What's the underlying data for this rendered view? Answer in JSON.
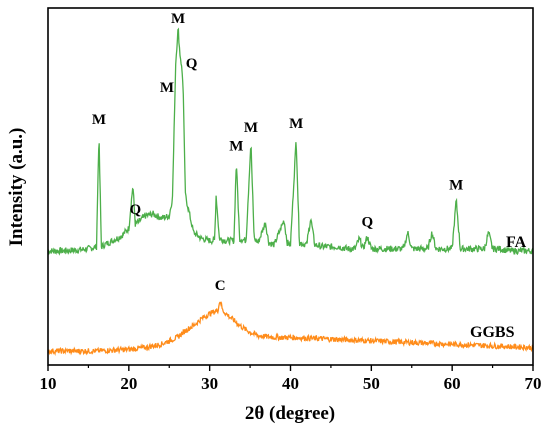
{
  "chart_data": {
    "type": "line",
    "xlabel": "2θ (degree)",
    "ylabel": "Intensity (a.u.)",
    "xlim": [
      10,
      70
    ],
    "xticks": [
      "10",
      "20",
      "30",
      "40",
      "50",
      "60",
      "70"
    ],
    "yticks": [],
    "grid": false,
    "series": [
      {
        "name": "FA",
        "color": "#4daf4a",
        "x": [
          10,
          12,
          14,
          15,
          16,
          16.3,
          16.6,
          17,
          18,
          19,
          20,
          20.5,
          20.8,
          21.2,
          22,
          23,
          24,
          25,
          25.4,
          25.8,
          26.1,
          26.3,
          26.5,
          26.7,
          27,
          28,
          29,
          30,
          30.6,
          30.8,
          31.2,
          32,
          33,
          33.3,
          33.7,
          34.5,
          35.1,
          35.5,
          36,
          36.9,
          37.3,
          38,
          39.2,
          39.6,
          40,
          40.7,
          41.1,
          42,
          42.5,
          43,
          44,
          45,
          46,
          47,
          48,
          48.5,
          49,
          49.5,
          50,
          51,
          52,
          53,
          54,
          54.5,
          55,
          56,
          57,
          57.5,
          58,
          59,
          60,
          60.5,
          61,
          62,
          63,
          64,
          64.5,
          65,
          66,
          67,
          68,
          69,
          70
        ],
        "y": [
          3,
          3,
          3.5,
          4,
          5,
          60,
          5,
          6,
          8,
          10,
          14,
          35,
          16,
          17,
          20,
          21,
          19,
          20,
          29,
          95,
          112,
          100,
          94,
          85,
          30,
          12,
          9,
          8,
          8,
          30,
          9,
          8,
          8,
          47,
          9,
          8,
          56,
          9,
          7,
          17,
          7,
          6,
          18,
          7,
          6,
          58,
          7,
          6,
          19,
          6,
          5,
          5,
          5,
          4,
          4,
          9,
          4,
          10,
          4,
          4,
          4,
          4,
          4,
          12,
          4,
          4,
          4,
          12,
          4,
          4,
          4,
          28,
          4,
          4,
          4,
          4,
          12,
          4,
          4,
          3,
          3,
          3,
          3
        ]
      },
      {
        "name": "GGBS",
        "color": "#ff8c1a",
        "x": [
          10,
          12,
          14,
          16,
          18,
          20,
          22,
          24,
          26,
          27,
          28,
          29,
          30,
          30.5,
          31,
          31.3,
          31.6,
          32,
          33,
          34,
          35,
          36,
          38,
          40,
          45,
          50,
          55,
          60,
          65,
          70
        ],
        "y": [
          0,
          0,
          0,
          0,
          0.5,
          1,
          2,
          4,
          8,
          12,
          15,
          19,
          22,
          23,
          24,
          30,
          24,
          22,
          18,
          14,
          11,
          9,
          8,
          8,
          7,
          6,
          5,
          4,
          3,
          2
        ]
      }
    ],
    "annotations": [
      {
        "text": "M",
        "series": 0,
        "x": 16.3
      },
      {
        "text": "Q",
        "series": 0,
        "x": 20.8
      },
      {
        "text": "M",
        "series": 0,
        "x": 25.3
      },
      {
        "text": "M",
        "series": 0,
        "x": 26.1
      },
      {
        "text": "Q",
        "series": 0,
        "x": 26.9
      },
      {
        "text": "M",
        "series": 0,
        "x": 33.3
      },
      {
        "text": "M",
        "series": 0,
        "x": 35.1
      },
      {
        "text": "M",
        "series": 0,
        "x": 40.7
      },
      {
        "text": "Q",
        "series": 0,
        "x": 49.5
      },
      {
        "text": "M",
        "series": 0,
        "x": 60.5
      },
      {
        "text": "C",
        "series": 1,
        "x": 31.3
      }
    ]
  }
}
